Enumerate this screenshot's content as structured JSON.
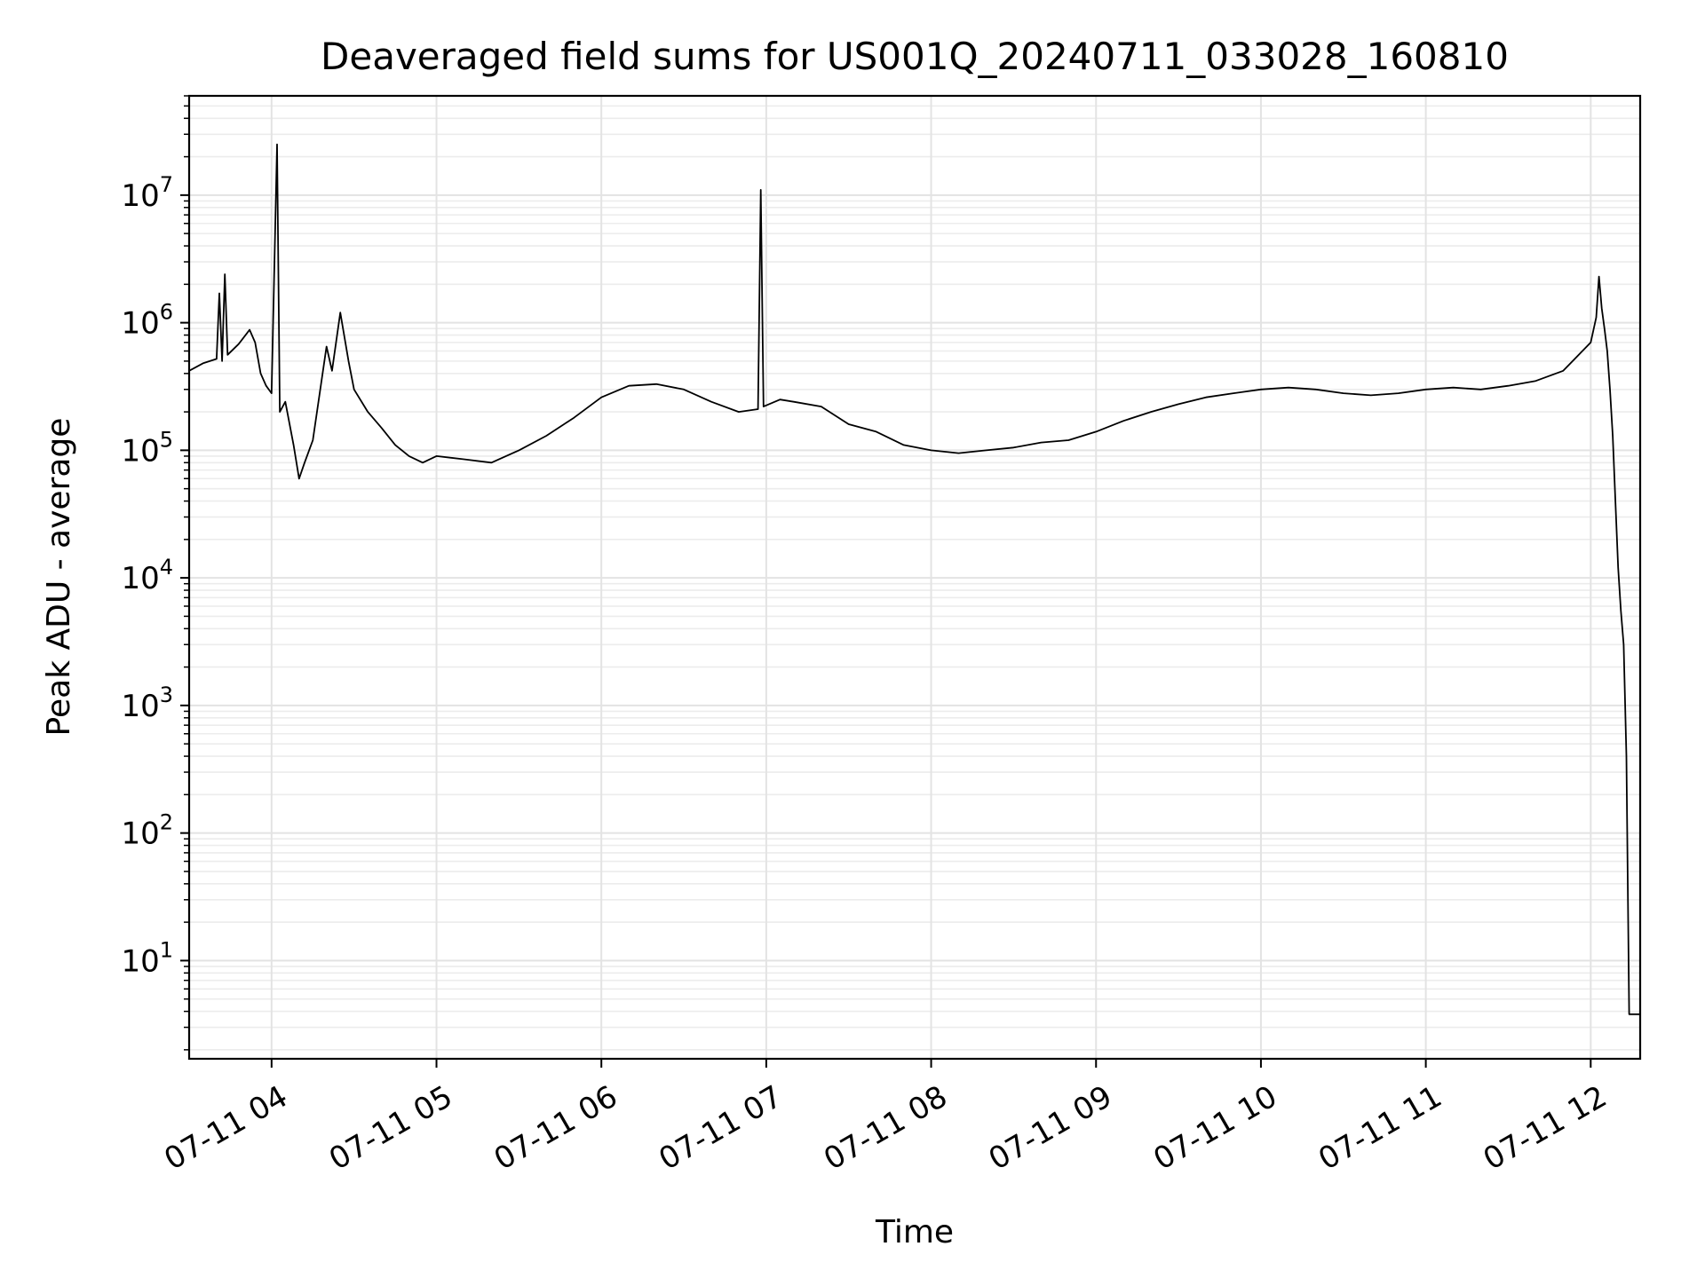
{
  "chart_data": {
    "type": "line",
    "title": "Deaveraged field sums for US001Q_20240711_033028_160810",
    "xlabel": "Time",
    "ylabel": "Peak ADU - average",
    "yscale": "log",
    "ylim": [
      1.7,
      60000000
    ],
    "xlim": [
      "2024-07-11 03:30",
      "2024-07-11 12:18"
    ],
    "grid": true,
    "x_ticks": [
      "07-11 04",
      "07-11 05",
      "07-11 06",
      "07-11 07",
      "07-11 08",
      "07-11 09",
      "07-11 10",
      "07-11 11",
      "07-11 12"
    ],
    "y_ticks": [
      {
        "base": "10",
        "exp": "1"
      },
      {
        "base": "10",
        "exp": "2"
      },
      {
        "base": "10",
        "exp": "3"
      },
      {
        "base": "10",
        "exp": "4"
      },
      {
        "base": "10",
        "exp": "5"
      },
      {
        "base": "10",
        "exp": "6"
      },
      {
        "base": "10",
        "exp": "7"
      }
    ],
    "series": [
      {
        "color": "#000000",
        "points": [
          [
            "03:30",
            420000
          ],
          [
            "03:35",
            480000
          ],
          [
            "03:40",
            520000
          ],
          [
            "03:41",
            1700000
          ],
          [
            "03:42",
            500000
          ],
          [
            "03:43",
            2400000
          ],
          [
            "03:44",
            560000
          ],
          [
            "03:48",
            680000
          ],
          [
            "03:52",
            880000
          ],
          [
            "03:54",
            700000
          ],
          [
            "03:56",
            400000
          ],
          [
            "03:58",
            320000
          ],
          [
            "04:00",
            280000
          ],
          [
            "04:02",
            25000000
          ],
          [
            "04:03",
            200000
          ],
          [
            "04:05",
            240000
          ],
          [
            "04:08",
            110000
          ],
          [
            "04:10",
            60000
          ],
          [
            "04:12",
            80000
          ],
          [
            "04:15",
            120000
          ],
          [
            "04:20",
            650000
          ],
          [
            "04:22",
            420000
          ],
          [
            "04:25",
            1200000
          ],
          [
            "04:28",
            500000
          ],
          [
            "04:30",
            300000
          ],
          [
            "04:35",
            200000
          ],
          [
            "04:40",
            150000
          ],
          [
            "04:45",
            110000
          ],
          [
            "04:50",
            90000
          ],
          [
            "04:55",
            80000
          ],
          [
            "05:00",
            90000
          ],
          [
            "05:10",
            85000
          ],
          [
            "05:20",
            80000
          ],
          [
            "05:30",
            100000
          ],
          [
            "05:40",
            130000
          ],
          [
            "05:50",
            180000
          ],
          [
            "06:00",
            260000
          ],
          [
            "06:10",
            320000
          ],
          [
            "06:20",
            330000
          ],
          [
            "06:30",
            300000
          ],
          [
            "06:40",
            240000
          ],
          [
            "06:50",
            200000
          ],
          [
            "06:57",
            210000
          ],
          [
            "06:58",
            11000000
          ],
          [
            "06:59",
            220000
          ],
          [
            "07:05",
            250000
          ],
          [
            "07:10",
            240000
          ],
          [
            "07:20",
            220000
          ],
          [
            "07:30",
            160000
          ],
          [
            "07:40",
            140000
          ],
          [
            "07:50",
            110000
          ],
          [
            "08:00",
            100000
          ],
          [
            "08:10",
            95000
          ],
          [
            "08:20",
            100000
          ],
          [
            "08:30",
            105000
          ],
          [
            "08:40",
            115000
          ],
          [
            "08:50",
            120000
          ],
          [
            "09:00",
            140000
          ],
          [
            "09:10",
            170000
          ],
          [
            "09:20",
            200000
          ],
          [
            "09:30",
            230000
          ],
          [
            "09:40",
            260000
          ],
          [
            "09:50",
            280000
          ],
          [
            "10:00",
            300000
          ],
          [
            "10:10",
            310000
          ],
          [
            "10:20",
            300000
          ],
          [
            "10:30",
            280000
          ],
          [
            "10:40",
            270000
          ],
          [
            "10:50",
            280000
          ],
          [
            "11:00",
            300000
          ],
          [
            "11:10",
            310000
          ],
          [
            "11:20",
            300000
          ],
          [
            "11:30",
            320000
          ],
          [
            "11:40",
            350000
          ],
          [
            "11:50",
            420000
          ],
          [
            "12:00",
            700000
          ],
          [
            "12:02",
            1100000
          ],
          [
            "12:03",
            2300000
          ],
          [
            "12:04",
            1300000
          ],
          [
            "12:05",
            900000
          ],
          [
            "12:06",
            600000
          ],
          [
            "12:07",
            300000
          ],
          [
            "12:08",
            130000
          ],
          [
            "12:09",
            40000
          ],
          [
            "12:10",
            12000
          ],
          [
            "12:11",
            5500
          ],
          [
            "12:12",
            3000
          ],
          [
            "12:13",
            400
          ],
          [
            "12:14",
            3.8
          ],
          [
            "12:18",
            3.8
          ]
        ]
      }
    ]
  }
}
